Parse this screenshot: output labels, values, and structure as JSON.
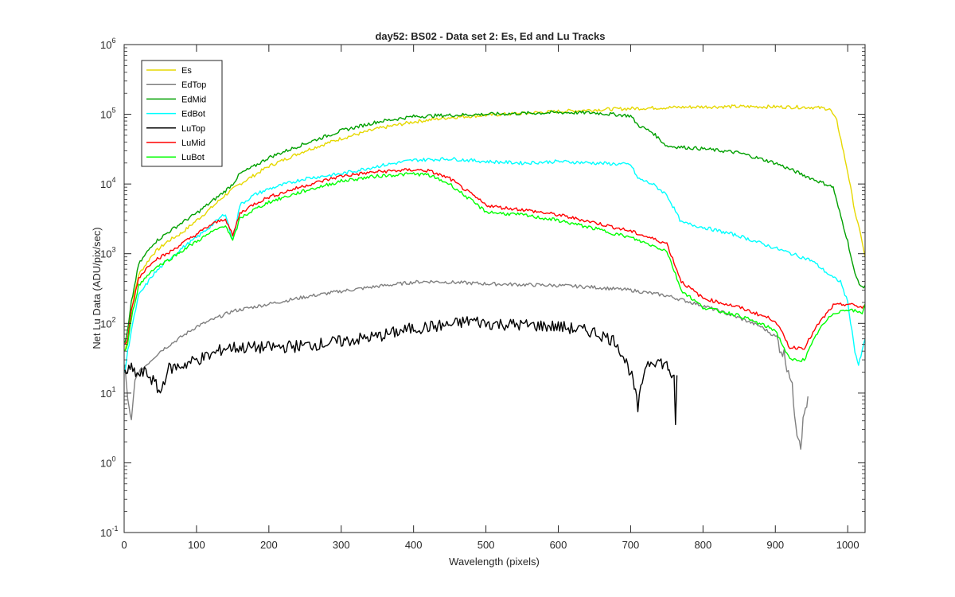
{
  "chart_data": {
    "type": "line",
    "title": "day52: BS02 - Data set 2: Es, Ed and Lu Tracks",
    "xlabel": "Wavelength (pixels)",
    "ylabel": "Net Lu Data (ADU/pix/sec)",
    "xlim": [
      0,
      1024
    ],
    "ylim": [
      0.1,
      1000000
    ],
    "yscale": "log",
    "grid": false,
    "legend_position": "top-left",
    "x_ticks": [
      0,
      100,
      200,
      300,
      400,
      500,
      600,
      700,
      800,
      900,
      1000
    ],
    "x_tick_labels": [
      "0",
      "100",
      "200",
      "300",
      "400",
      "500",
      "600",
      "700",
      "800",
      "900",
      "1000"
    ],
    "y_ticks": [
      {
        "value": 0.1,
        "base": "10",
        "exp": "-1"
      },
      {
        "value": 1,
        "base": "10",
        "exp": "0"
      },
      {
        "value": 10,
        "base": "10",
        "exp": "1"
      },
      {
        "value": 100,
        "base": "10",
        "exp": "2"
      },
      {
        "value": 1000,
        "base": "10",
        "exp": "3"
      },
      {
        "value": 10000,
        "base": "10",
        "exp": "4"
      },
      {
        "value": 100000,
        "base": "10",
        "exp": "5"
      },
      {
        "value": 1000000,
        "base": "10",
        "exp": "6"
      }
    ],
    "series": [
      {
        "name": "Es",
        "color": "#e6d800",
        "x": [
          1,
          5,
          10,
          20,
          40,
          60,
          80,
          100,
          120,
          140,
          160,
          200,
          250,
          300,
          350,
          400,
          450,
          500,
          550,
          600,
          650,
          700,
          750,
          800,
          850,
          900,
          950,
          975,
          985,
          1000,
          1010,
          1020,
          1024
        ],
        "y": [
          40,
          60,
          160,
          500,
          1000,
          1500,
          2000,
          3000,
          4500,
          7000,
          10000,
          18000,
          30000,
          45000,
          62000,
          78000,
          90000,
          97000,
          103000,
          110000,
          116000,
          121000,
          125000,
          128000,
          129000,
          128000,
          126000,
          120000,
          80000,
          15000,
          4000,
          1500,
          900
        ]
      },
      {
        "name": "EdTop",
        "color": "#808080",
        "x": [
          1,
          5,
          10,
          15,
          20,
          30,
          50,
          80,
          100,
          150,
          200,
          250,
          300,
          350,
          400,
          420,
          450,
          500,
          550,
          600,
          650,
          700,
          750,
          800,
          850,
          880,
          900,
          910,
          920,
          925,
          930,
          935,
          940,
          945
        ],
        "y": [
          25,
          8,
          4,
          15,
          20,
          25,
          40,
          65,
          90,
          150,
          190,
          240,
          290,
          340,
          390,
          400,
          390,
          370,
          360,
          350,
          330,
          300,
          250,
          180,
          120,
          90,
          65,
          40,
          20,
          8,
          3,
          2,
          5,
          9
        ]
      },
      {
        "name": "EdMid",
        "color": "#00a000",
        "x": [
          1,
          5,
          10,
          20,
          40,
          60,
          80,
          100,
          120,
          140,
          150,
          160,
          180,
          200,
          250,
          300,
          350,
          400,
          450,
          500,
          550,
          600,
          650,
          700,
          710,
          730,
          750,
          800,
          850,
          900,
          950,
          980,
          985,
          1000,
          1010,
          1020,
          1024
        ],
        "y": [
          50,
          80,
          200,
          700,
          1400,
          2000,
          2800,
          3800,
          5500,
          8000,
          10000,
          14000,
          18000,
          24000,
          38000,
          58000,
          78000,
          93000,
          97000,
          100000,
          103000,
          106000,
          105000,
          95000,
          70000,
          55000,
          35000,
          32000,
          28000,
          20000,
          12000,
          9000,
          5500,
          1500,
          500,
          320,
          350
        ]
      },
      {
        "name": "EdBot",
        "color": "#00ffff",
        "x": [
          1,
          5,
          10,
          20,
          40,
          60,
          80,
          100,
          120,
          140,
          150,
          160,
          180,
          200,
          250,
          300,
          350,
          400,
          450,
          500,
          550,
          600,
          650,
          700,
          710,
          730,
          750,
          770,
          800,
          850,
          900,
          950,
          980,
          990,
          1000,
          1010,
          1015,
          1020,
          1024
        ],
        "y": [
          20,
          40,
          80,
          250,
          500,
          800,
          1200,
          1700,
          2500,
          3800,
          1500,
          5000,
          7000,
          8500,
          12000,
          14000,
          18000,
          22000,
          23000,
          21000,
          20000,
          21000,
          20000,
          19000,
          12000,
          10000,
          7000,
          2800,
          2400,
          1800,
          1200,
          800,
          450,
          400,
          200,
          40,
          25,
          40,
          60
        ]
      },
      {
        "name": "LuTop",
        "color": "#000000",
        "x": [
          1,
          10,
          20,
          30,
          40,
          50,
          60,
          80,
          100,
          120,
          140,
          160,
          180,
          200,
          250,
          300,
          350,
          400,
          450,
          480,
          500,
          550,
          600,
          650,
          680,
          700,
          705,
          710,
          720,
          730,
          740,
          750,
          755,
          760,
          762,
          764
        ],
        "y": [
          20,
          22,
          18,
          20,
          15,
          10,
          22,
          25,
          30,
          35,
          45,
          45,
          45,
          45,
          48,
          55,
          65,
          85,
          95,
          110,
          100,
          95,
          90,
          75,
          55,
          20,
          12,
          6,
          25,
          30,
          28,
          25,
          20,
          15,
          3,
          18
        ]
      },
      {
        "name": "LuMid",
        "color": "#ff0000",
        "x": [
          1,
          5,
          10,
          20,
          40,
          60,
          80,
          100,
          120,
          140,
          150,
          160,
          180,
          200,
          250,
          300,
          350,
          400,
          420,
          450,
          500,
          520,
          550,
          600,
          650,
          700,
          750,
          770,
          800,
          850,
          900,
          920,
          940,
          960,
          980,
          1000,
          1020,
          1024
        ],
        "y": [
          50,
          60,
          150,
          450,
          800,
          1000,
          1400,
          1900,
          2600,
          3200,
          1800,
          3800,
          5200,
          6500,
          9500,
          13000,
          15000,
          16000,
          15500,
          12000,
          5000,
          4600,
          4300,
          3600,
          2800,
          2100,
          1400,
          400,
          230,
          170,
          110,
          45,
          45,
          100,
          180,
          190,
          170,
          180
        ]
      },
      {
        "name": "LuBot",
        "color": "#00ff00",
        "x": [
          1,
          5,
          10,
          20,
          40,
          60,
          80,
          100,
          120,
          140,
          150,
          160,
          180,
          200,
          250,
          300,
          350,
          400,
          420,
          450,
          500,
          520,
          550,
          600,
          650,
          700,
          750,
          770,
          800,
          850,
          900,
          920,
          940,
          960,
          980,
          1000,
          1020,
          1024
        ],
        "y": [
          40,
          50,
          120,
          350,
          600,
          800,
          1100,
          1500,
          2000,
          2600,
          1500,
          3200,
          4300,
          5500,
          8000,
          11000,
          13000,
          14000,
          13500,
          10000,
          4000,
          3800,
          3600,
          3000,
          2300,
          1700,
          1100,
          300,
          170,
          130,
          80,
          30,
          30,
          80,
          140,
          160,
          140,
          190
        ]
      }
    ]
  }
}
